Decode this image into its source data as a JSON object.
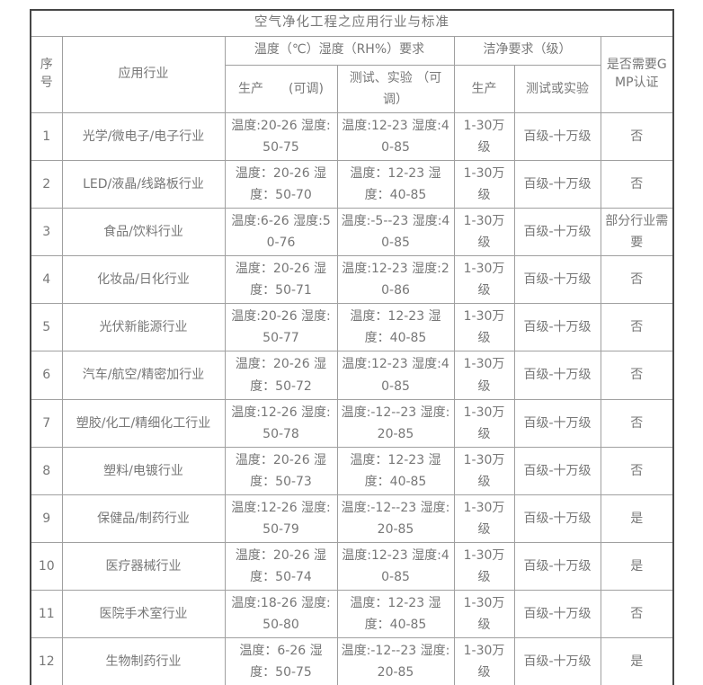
{
  "table": {
    "title": "空气净化工程之应用行业与标准",
    "headers": {
      "index": "序号",
      "industry": "应用行业",
      "temp_humidity_group": "温度（℃）湿度（RH%）要求",
      "temp_prod": "生产　　(可调)",
      "temp_test": "测试、实验 （可调）",
      "clean_group": "洁净要求（级）",
      "clean_prod": "生产",
      "clean_test": "测试或实验",
      "gmp": "是否需要GMP认证"
    },
    "rows": [
      {
        "index": "1",
        "industry": "光学/微电子/电子行业",
        "temp_prod": "温度:20-26 湿度:50-75",
        "temp_test": "温度:12-23 湿度:40-85",
        "clean_prod": "1-30万级",
        "clean_test": "百级-十万级",
        "gmp": "否"
      },
      {
        "index": "2",
        "industry": "LED/液晶/线路板行业",
        "temp_prod": "温度：20-26 湿度：50-70",
        "temp_test": "温度：12-23 湿度：40-85",
        "clean_prod": "1-30万级",
        "clean_test": "百级-十万级",
        "gmp": "否"
      },
      {
        "index": "3",
        "industry": "食品/饮料行业",
        "temp_prod": "温度:6-26 湿度:50-76",
        "temp_test": "温度:-5--23 湿度:40-85",
        "clean_prod": "1-30万级",
        "clean_test": "百级-十万级",
        "gmp": "部分行业需要"
      },
      {
        "index": "4",
        "industry": "化妆品/日化行业",
        "temp_prod": "温度：20-26 湿度：50-71",
        "temp_test": "温度:12-23 湿度:20-86",
        "clean_prod": "1-30万级",
        "clean_test": "百级-十万级",
        "gmp": "否"
      },
      {
        "index": "5",
        "industry": "光伏新能源行业",
        "temp_prod": "温度:20-26 湿度:50-77",
        "temp_test": "温度：12-23 湿度：40-85",
        "clean_prod": "1-30万级",
        "clean_test": "百级-十万级",
        "gmp": "否"
      },
      {
        "index": "6",
        "industry": "汽车/航空/精密加行业",
        "temp_prod": "温度：20-26 湿度：50-72",
        "temp_test": "温度:12-23 湿度:40-85",
        "clean_prod": "1-30万级",
        "clean_test": "百级-十万级",
        "gmp": "否"
      },
      {
        "index": "7",
        "industry": "塑胶/化工/精细化工行业",
        "temp_prod": "温度:12-26 湿度:50-78",
        "temp_test": "温度:-12--23 湿度:20-85",
        "clean_prod": "1-30万级",
        "clean_test": "百级-十万级",
        "gmp": "否"
      },
      {
        "index": "8",
        "industry": "塑料/电镀行业",
        "temp_prod": "温度：20-26 湿度：50-73",
        "temp_test": "温度：12-23 湿度：40-85",
        "clean_prod": "1-30万级",
        "clean_test": "百级-十万级",
        "gmp": "否"
      },
      {
        "index": "9",
        "industry": "保健品/制药行业",
        "temp_prod": "温度:12-26 湿度:50-79",
        "temp_test": "温度:-12--23 湿度:20-85",
        "clean_prod": "1-30万级",
        "clean_test": "百级-十万级",
        "gmp": "是"
      },
      {
        "index": "10",
        "industry": "医疗器械行业",
        "temp_prod": "温度：20-26 湿度：50-74",
        "temp_test": "温度:12-23 湿度:40-85",
        "clean_prod": "1-30万级",
        "clean_test": "百级-十万级",
        "gmp": "是"
      },
      {
        "index": "11",
        "industry": "医院手术室行业",
        "temp_prod": "温度:18-26 湿度:50-80",
        "temp_test": "温度：12-23 湿度：40-85",
        "clean_prod": "1-30万级",
        "clean_test": "百级-十万级",
        "gmp": "否"
      },
      {
        "index": "12",
        "industry": "生物制药行业",
        "temp_prod": "温度：6-26 湿度：50-75",
        "temp_test": "温度:-12--23 湿度:20-85",
        "clean_prod": "1-30万级",
        "clean_test": "百级-十万级",
        "gmp": "是"
      }
    ]
  }
}
